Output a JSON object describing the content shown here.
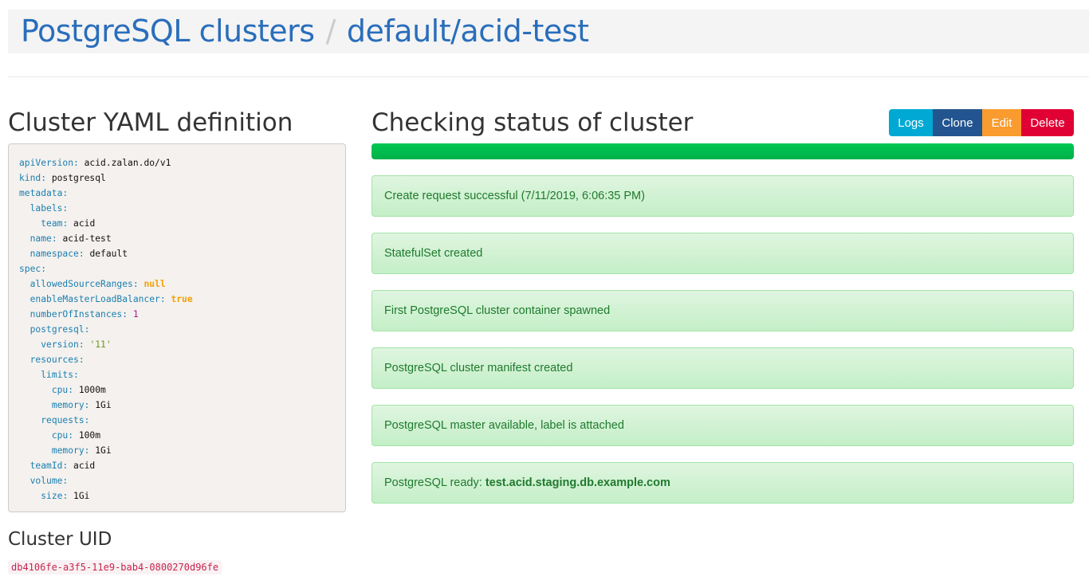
{
  "header": {
    "link": "PostgreSQL clusters",
    "separator": "/",
    "current": "default/acid-test"
  },
  "yaml_section": {
    "title": "Cluster YAML definition",
    "lines": [
      {
        "i": 0,
        "k": "apiVersion",
        "v": "acid.zalan.do/v1",
        "t": "v"
      },
      {
        "i": 0,
        "k": "kind",
        "v": "postgresql",
        "t": "v"
      },
      {
        "i": 0,
        "k": "metadata",
        "v": "",
        "t": "v"
      },
      {
        "i": 1,
        "k": "labels",
        "v": "",
        "t": "v"
      },
      {
        "i": 2,
        "k": "team",
        "v": "acid",
        "t": "v"
      },
      {
        "i": 1,
        "k": "name",
        "v": "acid-test",
        "t": "v"
      },
      {
        "i": 1,
        "k": "namespace",
        "v": "default",
        "t": "v"
      },
      {
        "i": 0,
        "k": "spec",
        "v": "",
        "t": "v"
      },
      {
        "i": 1,
        "k": "allowedSourceRanges",
        "v": "null",
        "t": "b"
      },
      {
        "i": 1,
        "k": "enableMasterLoadBalancer",
        "v": "true",
        "t": "b"
      },
      {
        "i": 1,
        "k": "numberOfInstances",
        "v": "1",
        "t": "n"
      },
      {
        "i": 1,
        "k": "postgresql",
        "v": "",
        "t": "v"
      },
      {
        "i": 2,
        "k": "version",
        "v": "'11'",
        "t": "s"
      },
      {
        "i": 1,
        "k": "resources",
        "v": "",
        "t": "v"
      },
      {
        "i": 2,
        "k": "limits",
        "v": "",
        "t": "v"
      },
      {
        "i": 3,
        "k": "cpu",
        "v": "1000m",
        "t": "v"
      },
      {
        "i": 3,
        "k": "memory",
        "v": "1Gi",
        "t": "v"
      },
      {
        "i": 2,
        "k": "requests",
        "v": "",
        "t": "v"
      },
      {
        "i": 3,
        "k": "cpu",
        "v": "100m",
        "t": "v"
      },
      {
        "i": 3,
        "k": "memory",
        "v": "1Gi",
        "t": "v"
      },
      {
        "i": 1,
        "k": "teamId",
        "v": "acid",
        "t": "v"
      },
      {
        "i": 1,
        "k": "volume",
        "v": "",
        "t": "v"
      },
      {
        "i": 2,
        "k": "size",
        "v": "1Gi",
        "t": "v"
      }
    ]
  },
  "uid_section": {
    "title": "Cluster UID",
    "uid": "db4106fe-a3f5-11e9-bab4-0800270d96fe"
  },
  "status": {
    "title": "Checking status of cluster",
    "progress_percent": 100,
    "buttons": [
      {
        "label": "Logs",
        "color": "#00a9d4"
      },
      {
        "label": "Clone",
        "color": "#22558f"
      },
      {
        "label": "Edit",
        "color": "#f99b2e"
      },
      {
        "label": "Delete",
        "color": "#e00034"
      }
    ],
    "messages": [
      {
        "text": "Create request successful (7/11/2019, 6:06:35 PM)",
        "bold": ""
      },
      {
        "text": "StatefulSet created",
        "bold": ""
      },
      {
        "text": "First PostgreSQL cluster container spawned",
        "bold": ""
      },
      {
        "text": "PostgreSQL cluster manifest created",
        "bold": ""
      },
      {
        "text": "PostgreSQL master available, label is attached",
        "bold": ""
      },
      {
        "text": "PostgreSQL ready: ",
        "bold": "test.acid.staging.db.example.com"
      }
    ]
  }
}
